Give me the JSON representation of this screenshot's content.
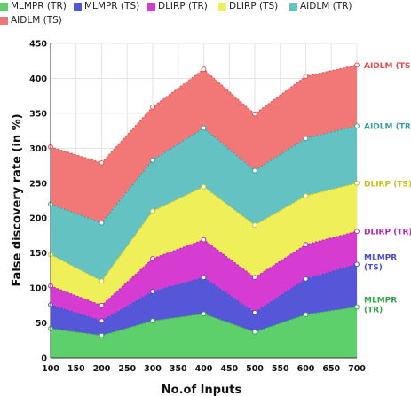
{
  "chart_data": {
    "type": "area",
    "stacked": true,
    "title": "",
    "xlabel": "No.of Inputs",
    "ylabel": "False discovery rate (in %)",
    "x": [
      100,
      200,
      300,
      400,
      500,
      600,
      700
    ],
    "xticks": [
      "100",
      "150",
      "200",
      "250",
      "300",
      "350",
      "400",
      "450",
      "500",
      "550",
      "600",
      "650",
      "700"
    ],
    "yticks": [
      "0",
      "50",
      "100",
      "150",
      "200",
      "250",
      "300",
      "350",
      "400",
      "450"
    ],
    "xlim": [
      100,
      700
    ],
    "ylim": [
      0,
      450
    ],
    "grid": true,
    "legend_position": "top-left",
    "series": [
      {
        "name": "MLMPR (TR)",
        "end_label": [
          "MLMPR",
          "(TR)"
        ],
        "color": "#5dcf6b",
        "label_color": "#33a64a",
        "values": [
          42,
          32,
          53,
          63,
          37,
          62,
          73
        ]
      },
      {
        "name": "MLMPR (TS)",
        "end_label": [
          "MLMPR",
          "(TS)"
        ],
        "color": "#5557d8",
        "label_color": "#4a4ccd",
        "values": [
          76,
          53,
          95,
          115,
          65,
          113,
          134
        ]
      },
      {
        "name": "DLIRP (TR)",
        "end_label": [
          "DLIRP (TR)"
        ],
        "color": "#d63cd2",
        "label_color": "#b028ad",
        "values": [
          103,
          75,
          142,
          169,
          115,
          162,
          181
        ]
      },
      {
        "name": "DLIRP (TS)",
        "end_label": [
          "DLIRP (TS)"
        ],
        "color": "#efef5a",
        "label_color": "#c7c21e",
        "values": [
          148,
          110,
          210,
          245,
          190,
          232,
          250
        ]
      },
      {
        "name": "AIDLM (TR)",
        "end_label": [
          "AIDLM (TR)"
        ],
        "color": "#64c2c2",
        "label_color": "#3a9e9e",
        "values": [
          220,
          193,
          283,
          329,
          268,
          314,
          332
        ]
      },
      {
        "name": "AIDLM (TS)",
        "end_label": [
          "AIDLM (TS)"
        ],
        "color": "#f27878",
        "label_color": "#e04c4c",
        "values": [
          302,
          279,
          359,
          413,
          349,
          403,
          419
        ]
      }
    ]
  }
}
